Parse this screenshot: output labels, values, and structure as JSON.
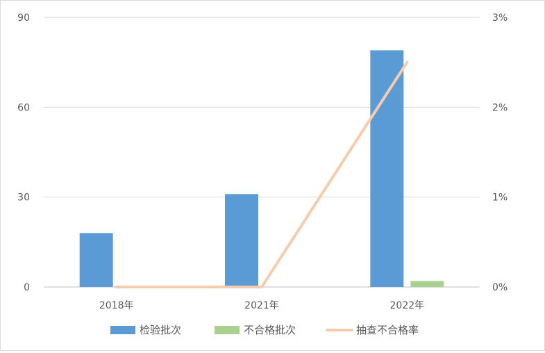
{
  "chart_data": {
    "type": "bar",
    "categories": [
      "2018年",
      "2021年",
      "2022年"
    ],
    "series": [
      {
        "name": "检验批次",
        "type": "bar",
        "axis": "left",
        "values": [
          18,
          31,
          79
        ],
        "color": "#5b9bd5"
      },
      {
        "name": "不合格批次",
        "type": "bar",
        "axis": "left",
        "values": [
          0,
          0,
          2
        ],
        "color": "#a9d18e"
      },
      {
        "name": "抽查不合格率",
        "type": "line",
        "axis": "right",
        "values": [
          0,
          0,
          2.5
        ],
        "color": "#f8cbad"
      }
    ],
    "y_left": {
      "range": [
        0,
        90
      ],
      "ticks": [
        "0",
        "30",
        "60",
        "90"
      ]
    },
    "y_right": {
      "range": [
        0,
        3
      ],
      "ticks": [
        "0%",
        "1%",
        "2%",
        "3%"
      ]
    },
    "grid": true,
    "legend_position": "bottom",
    "title": "",
    "xlabel": "",
    "ylabel": ""
  }
}
